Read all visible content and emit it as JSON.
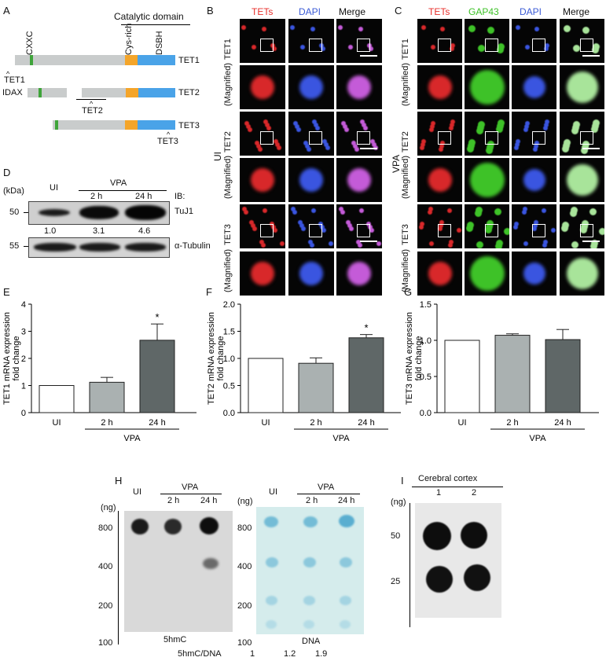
{
  "panelA": {
    "letter": "A",
    "catalytic": "Catalytic domain",
    "cxxc": "CXXC",
    "cys": "Cys-rich",
    "dsbh": "DSBH",
    "tet1": "TET1",
    "tet2": "TET2",
    "tet3": "TET3",
    "idax": "IDAX",
    "ptr_tet1": "TET1",
    "ptr_tet2": "TET2",
    "ptr_tet3": "TET3"
  },
  "panelB": {
    "letter": "B",
    "cols": [
      "TETs",
      "DAPI",
      "Merge"
    ],
    "rows": [
      "TET1",
      "(Magnified)",
      "TET2",
      "(Magnified)",
      "TET3",
      "(Magnified)"
    ],
    "group": "UI",
    "colors": {
      "tets": "#e8302c",
      "dapi": "#3b5bd6",
      "merge": "#222"
    }
  },
  "panelC": {
    "letter": "C",
    "cols": [
      "TETs",
      "GAP43",
      "DAPI",
      "Merge"
    ],
    "rows": [
      "TET1",
      "(Magnified)",
      "TET2",
      "(Magnified)",
      "TET3",
      "(Magnified)"
    ],
    "group": "VPA",
    "colors": {
      "gap43": "#3ec228"
    }
  },
  "panelD": {
    "letter": "D",
    "kda": "(kDa)",
    "ui": "UI",
    "vpa": "VPA",
    "t2": "2 h",
    "t24": "24 h",
    "ib": "IB:",
    "tuj1": "TuJ1",
    "tubulin": "α-Tubulin",
    "m50": "50",
    "m55": "55",
    "ratios": [
      "1.0",
      "3.1",
      "4.6"
    ]
  },
  "chart_data": [
    {
      "type": "bar",
      "panel": "E",
      "categories": [
        "UI",
        "2 h",
        "24 h"
      ],
      "values": [
        1.0,
        1.12,
        2.67
      ],
      "errors": [
        0,
        0.18,
        0.6
      ],
      "ylabel": "TET1 mRNA expression fold change",
      "ylim": [
        0,
        4
      ],
      "yticks": [
        0,
        1,
        2,
        3,
        4
      ],
      "group_label": "VPA",
      "significance": [
        "",
        "",
        "*"
      ],
      "colors": [
        "#ffffff",
        "#aab1b1",
        "#5f6767"
      ]
    },
    {
      "type": "bar",
      "panel": "F",
      "categories": [
        "UI",
        "2 h",
        "24 h"
      ],
      "values": [
        1.0,
        0.91,
        1.38
      ],
      "errors": [
        0,
        0.1,
        0.06
      ],
      "ylabel": "TET2 mRNA expression fold change",
      "ylim": [
        0,
        2.0
      ],
      "yticks": [
        0.0,
        0.5,
        1.0,
        1.5,
        2.0
      ],
      "group_label": "VPA",
      "significance": [
        "",
        "",
        "*"
      ],
      "colors": [
        "#ffffff",
        "#aab1b1",
        "#5f6767"
      ]
    },
    {
      "type": "bar",
      "panel": "G",
      "categories": [
        "UI",
        "2 h",
        "24 h"
      ],
      "values": [
        1.0,
        1.07,
        1.01
      ],
      "errors": [
        0,
        0.02,
        0.14
      ],
      "ylabel": "TET3 mRNA expression fold change",
      "ylim": [
        0,
        1.5
      ],
      "yticks": [
        0.0,
        0.5,
        1.0,
        1.5
      ],
      "group_label": "VPA",
      "significance": [
        "",
        "",
        ""
      ],
      "colors": [
        "#ffffff",
        "#aab1b1",
        "#5f6767"
      ]
    }
  ],
  "panelH": {
    "letter": "H",
    "ng": "(ng)",
    "ui": "UI",
    "vpa": "VPA",
    "t2": "2 h",
    "t24": "24 h",
    "amounts": [
      "800",
      "400",
      "200",
      "100"
    ],
    "label_5hmc": "5hmC",
    "label_dna": "DNA",
    "ratio_label": "5hmC/DNA",
    "ratios": [
      "1",
      "1.2",
      "1.9"
    ]
  },
  "panelI": {
    "letter": "I",
    "ng": "(ng)",
    "header": "Cerebral  cortex",
    "cols": [
      "1",
      "2"
    ],
    "amounts": [
      "50",
      "25"
    ]
  }
}
